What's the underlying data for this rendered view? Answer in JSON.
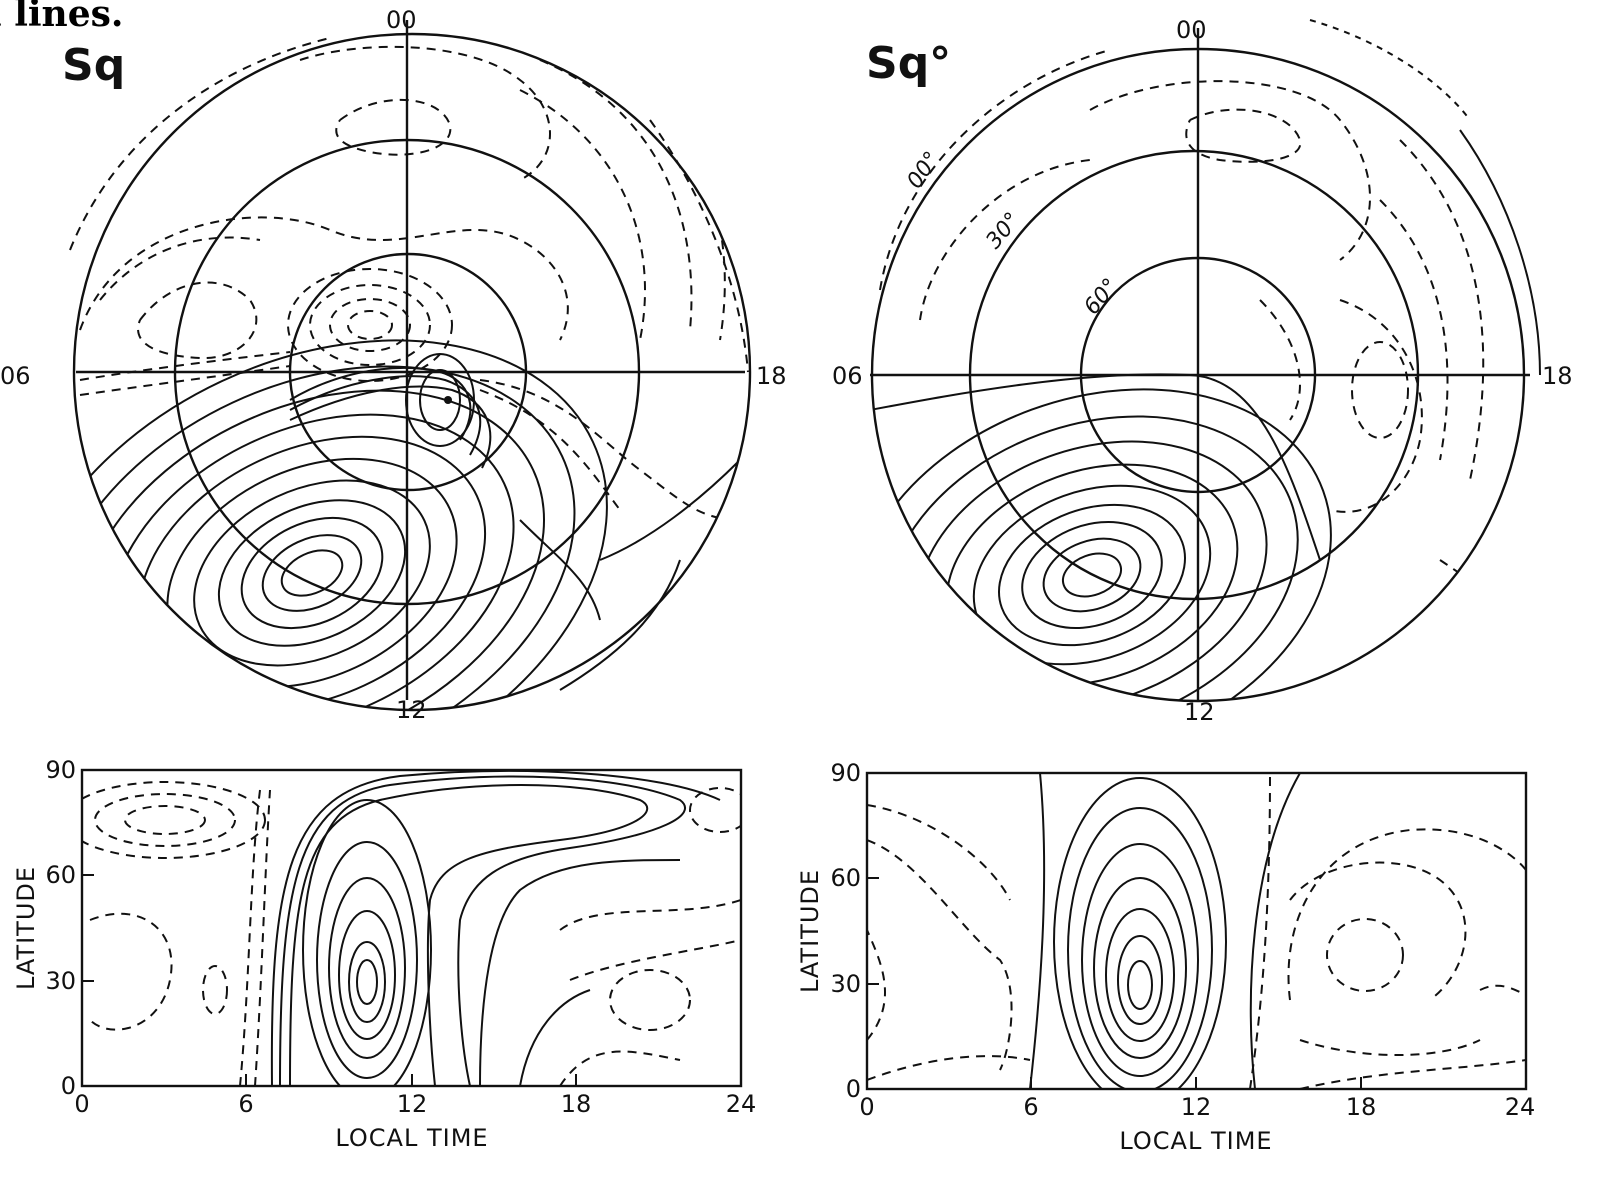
{
  "caption_fragment": "l lines.",
  "panels": {
    "sq": {
      "title": "Sq"
    },
    "sq0": {
      "title": "Sq°"
    }
  },
  "polar_hours": {
    "top": "00",
    "left": "06",
    "right": "18",
    "bottom": "12"
  },
  "latitude_labels": [
    "00°",
    "30°",
    "60°"
  ],
  "rect_axes": {
    "xlabel": "LOCAL TIME",
    "ylabel": "LATITUDE",
    "x_ticks": [
      "0",
      "6",
      "12",
      "18",
      "24"
    ],
    "y_ticks": [
      "0",
      "30",
      "60",
      "90"
    ]
  }
}
